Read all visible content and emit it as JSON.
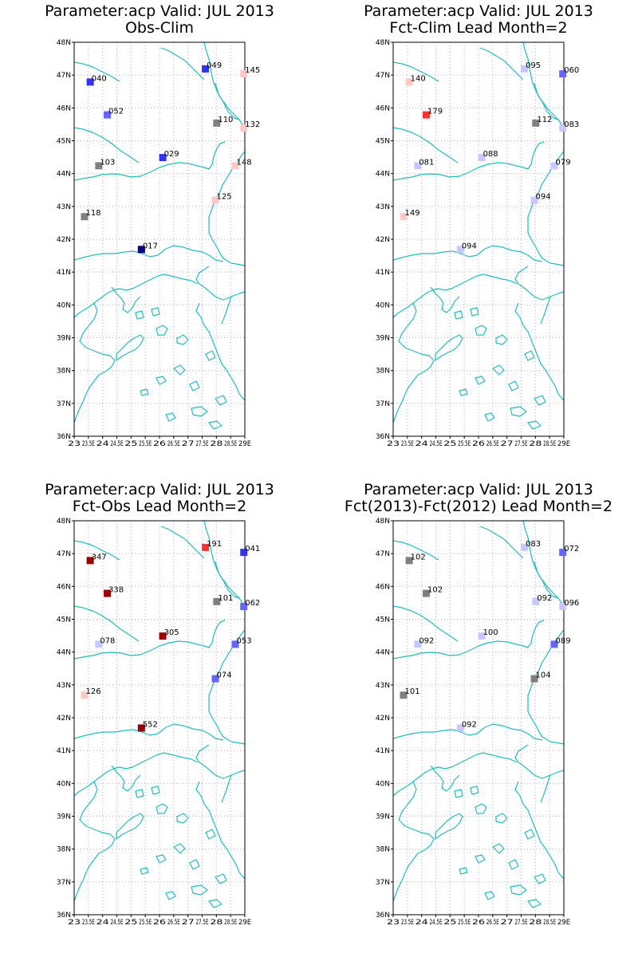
{
  "colors": {
    "coast": "#22bcbc",
    "grid": "#b0b0b0",
    "frame": "#000000",
    "background": "#ffffff",
    "marker_scale": {
      "dark_blue": "#000080",
      "blue": "#3232ff",
      "medium_blue": "#6464ff",
      "light_blue": "#c8c8ff",
      "gray": "#808080",
      "light_pink": "#ffc8c8",
      "red": "#ff3232",
      "dark_red": "#9b0000"
    }
  },
  "map": {
    "lat_range": [
      36,
      48
    ],
    "lon_range": [
      23,
      29
    ],
    "lat_ticks": [
      "36N",
      "37N",
      "38N",
      "39N",
      "40N",
      "41N",
      "42N",
      "43N",
      "44N",
      "45N",
      "46N",
      "47N",
      "48N"
    ],
    "lon_ticks": [
      "23",
      "23.5E",
      "24",
      "24.5E",
      "25",
      "25.5E",
      "26",
      "26.5E",
      "27",
      "27.5E",
      "28",
      "28.5E",
      "29E"
    ],
    "grid": true
  },
  "panels": [
    {
      "title_line1": "Parameter:acp Valid: JUL 2013",
      "title_line2": "Obs-Clim",
      "stations": [
        {
          "label": "040",
          "lat": 46.8,
          "lon": 23.55,
          "color": "#3232ff"
        },
        {
          "label": "049",
          "lat": 47.2,
          "lon": 27.6,
          "color": "#3232ff"
        },
        {
          "label": "145",
          "lat": 47.05,
          "lon": 28.95,
          "color": "#ffc8c8"
        },
        {
          "label": "052",
          "lat": 45.8,
          "lon": 24.15,
          "color": "#6464ff"
        },
        {
          "label": "110",
          "lat": 45.55,
          "lon": 28.0,
          "color": "#808080"
        },
        {
          "label": "132",
          "lat": 45.4,
          "lon": 28.95,
          "color": "#ffc8c8"
        },
        {
          "label": "029",
          "lat": 44.5,
          "lon": 26.1,
          "color": "#3232ff"
        },
        {
          "label": "103",
          "lat": 44.25,
          "lon": 23.85,
          "color": "#808080"
        },
        {
          "label": "148",
          "lat": 44.25,
          "lon": 28.65,
          "color": "#ffc8c8"
        },
        {
          "label": "125",
          "lat": 43.2,
          "lon": 27.95,
          "color": "#ffc8c8"
        },
        {
          "label": "118",
          "lat": 42.7,
          "lon": 23.35,
          "color": "#808080"
        },
        {
          "label": "017",
          "lat": 41.7,
          "lon": 25.35,
          "color": "#000080"
        }
      ]
    },
    {
      "title_line1": "Parameter:acp Valid: JUL 2013",
      "title_line2": "Fct-Clim Lead Month=2",
      "stations": [
        {
          "label": "140",
          "lat": 46.8,
          "lon": 23.55,
          "color": "#ffc8c8"
        },
        {
          "label": "095",
          "lat": 47.2,
          "lon": 27.6,
          "color": "#c8c8ff"
        },
        {
          "label": "060",
          "lat": 47.05,
          "lon": 28.95,
          "color": "#6464ff"
        },
        {
          "label": "179",
          "lat": 45.8,
          "lon": 24.15,
          "color": "#ff3232"
        },
        {
          "label": "112",
          "lat": 45.55,
          "lon": 28.0,
          "color": "#808080"
        },
        {
          "label": "083",
          "lat": 45.4,
          "lon": 28.95,
          "color": "#c8c8ff"
        },
        {
          "label": "088",
          "lat": 44.5,
          "lon": 26.1,
          "color": "#c8c8ff"
        },
        {
          "label": "081",
          "lat": 44.25,
          "lon": 23.85,
          "color": "#c8c8ff"
        },
        {
          "label": "079",
          "lat": 44.25,
          "lon": 28.65,
          "color": "#c8c8ff"
        },
        {
          "label": "094",
          "lat": 43.2,
          "lon": 27.95,
          "color": "#c8c8ff"
        },
        {
          "label": "149",
          "lat": 42.7,
          "lon": 23.35,
          "color": "#ffc8c8"
        },
        {
          "label": "094",
          "lat": 41.7,
          "lon": 25.35,
          "color": "#c8c8ff"
        }
      ]
    },
    {
      "title_line1": "Parameter:acp Valid: JUL 2013",
      "title_line2": "Fct-Obs Lead Month=2",
      "stations": [
        {
          "label": "347",
          "lat": 46.8,
          "lon": 23.55,
          "color": "#9b0000"
        },
        {
          "label": "191",
          "lat": 47.2,
          "lon": 27.6,
          "color": "#ff3232"
        },
        {
          "label": "041",
          "lat": 47.05,
          "lon": 28.95,
          "color": "#3232ff"
        },
        {
          "label": "338",
          "lat": 45.8,
          "lon": 24.15,
          "color": "#9b0000"
        },
        {
          "label": "101",
          "lat": 45.55,
          "lon": 28.0,
          "color": "#808080"
        },
        {
          "label": "062",
          "lat": 45.4,
          "lon": 28.95,
          "color": "#6464ff"
        },
        {
          "label": "305",
          "lat": 44.5,
          "lon": 26.1,
          "color": "#9b0000"
        },
        {
          "label": "078",
          "lat": 44.25,
          "lon": 23.85,
          "color": "#c8c8ff"
        },
        {
          "label": "053",
          "lat": 44.25,
          "lon": 28.65,
          "color": "#6464ff"
        },
        {
          "label": "074",
          "lat": 43.2,
          "lon": 27.95,
          "color": "#6464ff"
        },
        {
          "label": "126",
          "lat": 42.7,
          "lon": 23.35,
          "color": "#ffc8c8"
        },
        {
          "label": "552",
          "lat": 41.7,
          "lon": 25.35,
          "color": "#9b0000"
        }
      ]
    },
    {
      "title_line1": "Parameter:acp Valid: JUL 2013",
      "title_line2": "Fct(2013)-Fct(2012) Lead Month=2",
      "stations": [
        {
          "label": "102",
          "lat": 46.8,
          "lon": 23.55,
          "color": "#808080"
        },
        {
          "label": "083",
          "lat": 47.2,
          "lon": 27.6,
          "color": "#c8c8ff"
        },
        {
          "label": "072",
          "lat": 47.05,
          "lon": 28.95,
          "color": "#6464ff"
        },
        {
          "label": "102",
          "lat": 45.8,
          "lon": 24.15,
          "color": "#808080"
        },
        {
          "label": "092",
          "lat": 45.55,
          "lon": 28.0,
          "color": "#c8c8ff"
        },
        {
          "label": "096",
          "lat": 45.4,
          "lon": 28.95,
          "color": "#c8c8ff"
        },
        {
          "label": "100",
          "lat": 44.5,
          "lon": 26.1,
          "color": "#c8c8ff"
        },
        {
          "label": "092",
          "lat": 44.25,
          "lon": 23.85,
          "color": "#c8c8ff"
        },
        {
          "label": "089",
          "lat": 44.25,
          "lon": 28.65,
          "color": "#6464ff"
        },
        {
          "label": "104",
          "lat": 43.2,
          "lon": 27.95,
          "color": "#808080"
        },
        {
          "label": "101",
          "lat": 42.7,
          "lon": 23.35,
          "color": "#808080"
        },
        {
          "label": "092",
          "lat": 41.7,
          "lon": 25.35,
          "color": "#c8c8ff"
        }
      ]
    }
  ]
}
